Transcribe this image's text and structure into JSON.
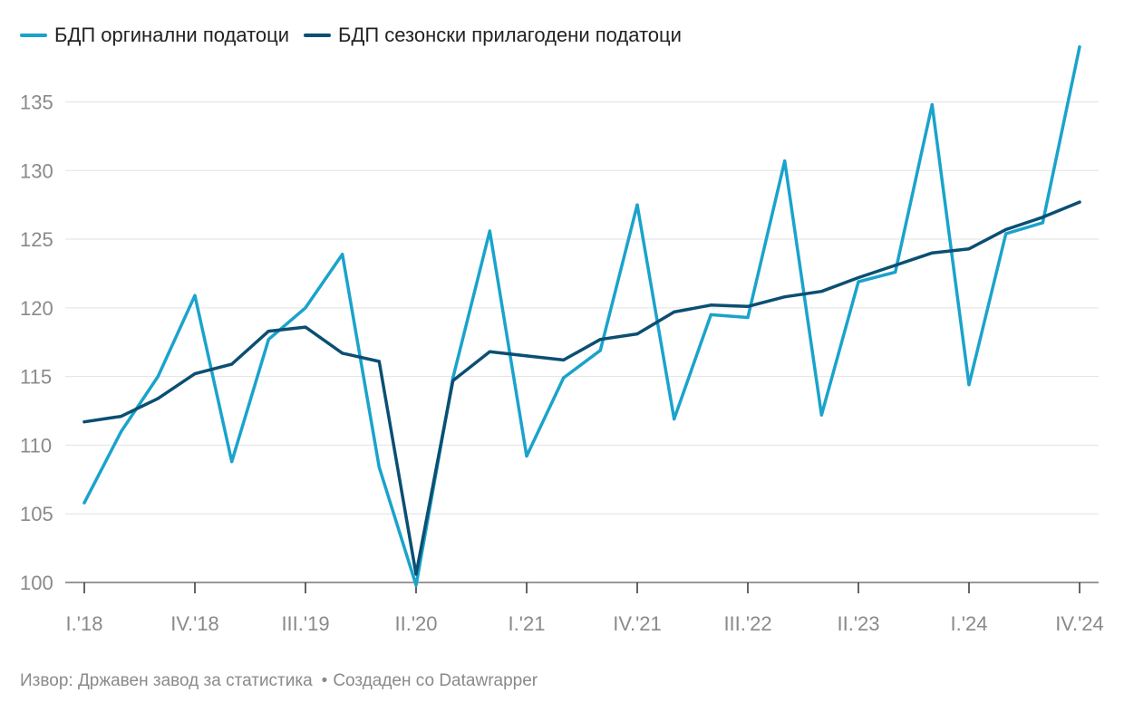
{
  "legend": [
    {
      "label": "БДП оргинални податоци",
      "color": "#1aa3cc"
    },
    {
      "label": "БДП сезонски прилагодени податоци",
      "color": "#0b4f72"
    }
  ],
  "footer": {
    "source": "Извор: Државен завод за статистика",
    "separator": "•",
    "credit": "Создаден со Datawrapper"
  },
  "chart_data": {
    "type": "line",
    "title": "",
    "xlabel": "",
    "ylabel": "",
    "ylim": [
      100,
      138
    ],
    "yticks": [
      100,
      105,
      110,
      115,
      120,
      125,
      130,
      135
    ],
    "grid": true,
    "legend_position": "top-left",
    "x": [
      "I.'18",
      "II.'18",
      "III.'18",
      "IV.'18",
      "I.'19",
      "II.'19",
      "III.'19",
      "IV.'19",
      "I.'20",
      "II.'20",
      "III.'20",
      "IV.'20",
      "I.'21",
      "II.'21",
      "III.'21",
      "IV.'21",
      "I.'22",
      "II.'22",
      "III.'22",
      "IV.'22",
      "I.'23",
      "II.'23",
      "III.'23",
      "IV.'23",
      "I.'24",
      "II.'24",
      "III.'24",
      "IV.'24"
    ],
    "xtick_labels": [
      "I.'18",
      "IV.'18",
      "III.'19",
      "II.'20",
      "I.'21",
      "IV.'21",
      "III.'22",
      "II.'23",
      "I.'24",
      "IV.'24"
    ],
    "xtick_indices": [
      0,
      3,
      6,
      9,
      12,
      15,
      18,
      21,
      24,
      27
    ],
    "series": [
      {
        "name": "БДП оргинални податоци",
        "color": "#1aa3cc",
        "values": [
          105.8,
          111.0,
          115.0,
          120.9,
          108.8,
          117.7,
          120.0,
          123.9,
          108.4,
          99.8,
          114.9,
          125.6,
          109.2,
          114.9,
          116.9,
          127.5,
          111.9,
          119.5,
          119.3,
          130.7,
          112.2,
          121.9,
          122.6,
          134.8,
          114.4,
          125.4,
          126.2,
          139.0
        ]
      },
      {
        "name": "БДП сезонски прилагодени податоци",
        "color": "#0b4f72",
        "values": [
          111.7,
          112.1,
          113.4,
          115.2,
          115.9,
          118.3,
          118.6,
          116.7,
          116.1,
          100.6,
          114.7,
          116.8,
          116.5,
          116.2,
          117.7,
          118.1,
          119.7,
          120.2,
          120.1,
          120.8,
          121.2,
          122.2,
          123.1,
          124.0,
          124.3,
          125.7,
          126.6,
          127.7
        ]
      }
    ]
  }
}
